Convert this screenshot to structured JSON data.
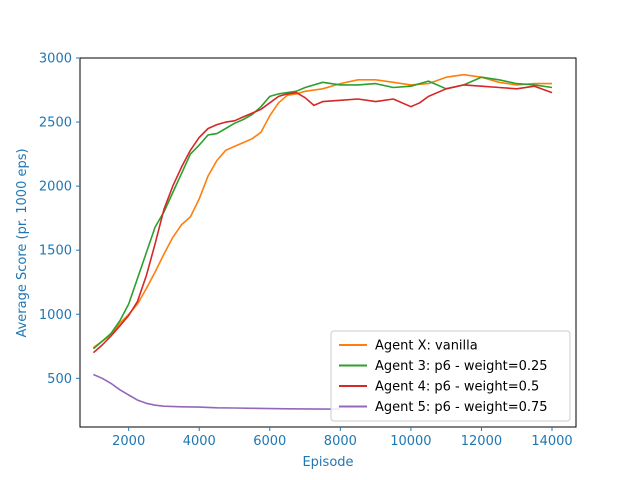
{
  "chart_data": {
    "type": "line",
    "xlabel": "Episode",
    "ylabel": "Average Score (pr. 1000 eps)",
    "xlim": [
      620,
      14680
    ],
    "ylim": [
      120,
      3000
    ],
    "xticks": [
      2000,
      4000,
      6000,
      8000,
      10000,
      12000,
      14000
    ],
    "xtick_labels": [
      "2000",
      "4000",
      "6000",
      "8000",
      "10000",
      "12000",
      "14000"
    ],
    "yticks": [
      500,
      1000,
      1500,
      2000,
      2500,
      3000
    ],
    "ytick_labels": [
      "500",
      "1000",
      "1500",
      "2000",
      "2500",
      "3000"
    ],
    "grid": false,
    "legend_position": "bottom-right",
    "axis_color": "#1f77b4",
    "series": [
      {
        "name": "Agent X: vanilla",
        "color": "#ff7f0e",
        "x": [
          1000,
          1250,
          1500,
          1750,
          2000,
          2250,
          2500,
          2750,
          3000,
          3250,
          3500,
          3750,
          4000,
          4250,
          4500,
          4750,
          5000,
          5250,
          5500,
          5750,
          6000,
          6250,
          6500,
          6750,
          7000,
          7500,
          8000,
          8500,
          9000,
          9500,
          10000,
          10500,
          11000,
          11500,
          12000,
          12500,
          13000,
          13500,
          14000
        ],
        "y": [
          740,
          790,
          840,
          930,
          1000,
          1080,
          1200,
          1330,
          1470,
          1600,
          1700,
          1760,
          1900,
          2080,
          2200,
          2280,
          2310,
          2340,
          2370,
          2420,
          2550,
          2650,
          2710,
          2720,
          2740,
          2760,
          2800,
          2830,
          2830,
          2810,
          2790,
          2800,
          2850,
          2870,
          2850,
          2810,
          2790,
          2800,
          2800
        ]
      },
      {
        "name": "Agent 3: p6 - weight=0.25",
        "color": "#2ca02c",
        "x": [
          1000,
          1250,
          1500,
          1750,
          2000,
          2250,
          2500,
          2750,
          3000,
          3250,
          3500,
          3750,
          4000,
          4250,
          4500,
          4750,
          5000,
          5250,
          5500,
          5750,
          6000,
          6250,
          6500,
          6750,
          7000,
          7500,
          8000,
          8500,
          9000,
          9500,
          10000,
          10500,
          11000,
          11500,
          12000,
          12500,
          13000,
          13500,
          14000
        ],
        "y": [
          730,
          790,
          850,
          950,
          1080,
          1280,
          1480,
          1680,
          1800,
          1950,
          2100,
          2250,
          2320,
          2400,
          2410,
          2450,
          2490,
          2520,
          2560,
          2620,
          2700,
          2720,
          2730,
          2740,
          2770,
          2810,
          2790,
          2790,
          2800,
          2770,
          2780,
          2820,
          2760,
          2790,
          2850,
          2830,
          2800,
          2790,
          2770
        ]
      },
      {
        "name": "Agent 4: p6 - weight=0.5",
        "color": "#d62728",
        "x": [
          1000,
          1250,
          1500,
          1750,
          2000,
          2250,
          2500,
          2750,
          3000,
          3250,
          3500,
          3750,
          4000,
          4250,
          4500,
          4750,
          5000,
          5250,
          5500,
          5750,
          6000,
          6250,
          6500,
          6750,
          7000,
          7250,
          7500,
          8000,
          8500,
          9000,
          9500,
          10000,
          10250,
          10500,
          11000,
          11500,
          12000,
          12500,
          13000,
          13500,
          14000
        ],
        "y": [
          700,
          760,
          830,
          910,
          990,
          1100,
          1300,
          1550,
          1820,
          2000,
          2150,
          2280,
          2380,
          2450,
          2480,
          2500,
          2510,
          2540,
          2570,
          2600,
          2650,
          2700,
          2720,
          2730,
          2690,
          2630,
          2660,
          2670,
          2680,
          2660,
          2680,
          2620,
          2650,
          2700,
          2760,
          2790,
          2780,
          2770,
          2760,
          2780,
          2730
        ]
      },
      {
        "name": "Agent 5: p6 - weight=0.75",
        "color": "#9467bd",
        "x": [
          1000,
          1250,
          1500,
          1750,
          2000,
          2250,
          2500,
          2750,
          3000,
          3500,
          4000,
          4500,
          5000,
          5500,
          6000,
          6500,
          7000,
          7500,
          8000
        ],
        "y": [
          530,
          500,
          460,
          410,
          370,
          330,
          305,
          290,
          282,
          278,
          275,
          270,
          268,
          266,
          264,
          262,
          261,
          260,
          260
        ]
      }
    ]
  }
}
